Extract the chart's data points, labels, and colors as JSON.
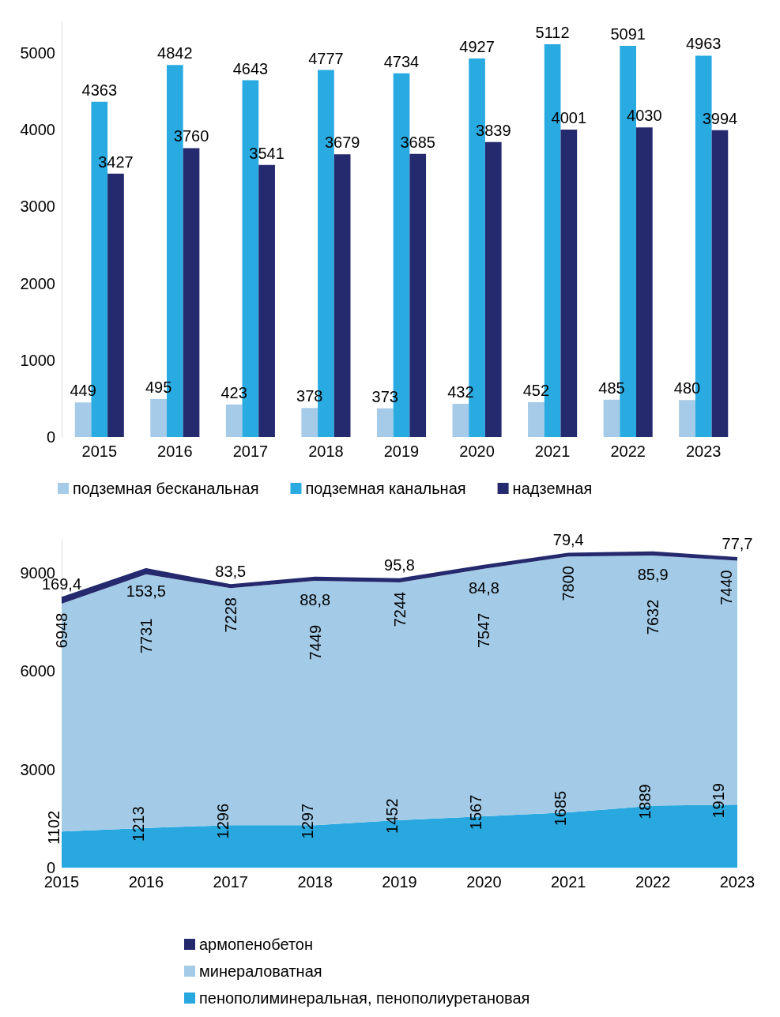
{
  "chart_data": [
    {
      "type": "bar",
      "categories": [
        "2015",
        "2016",
        "2017",
        "2018",
        "2019",
        "2020",
        "2021",
        "2022",
        "2023"
      ],
      "ylim": [
        0,
        5400
      ],
      "yticks": [
        0,
        1000,
        2000,
        3000,
        4000,
        5000
      ],
      "grid": false,
      "legend": "bottom",
      "data_labels": true,
      "series": [
        {
          "name": "подземная бесканальная",
          "color": "#a6cbe8",
          "values": [
            449,
            495,
            423,
            378,
            373,
            432,
            452,
            485,
            480
          ]
        },
        {
          "name": "подземная канальная",
          "color": "#29abe2",
          "values": [
            4363,
            4842,
            4643,
            4777,
            4734,
            4927,
            5112,
            5091,
            4963
          ]
        },
        {
          "name": "надземная",
          "color": "#252a6e",
          "values": [
            3427,
            3760,
            3541,
            3679,
            3685,
            3839,
            4001,
            4030,
            3994
          ]
        }
      ]
    },
    {
      "type": "area",
      "stacked": true,
      "categories": [
        "2015",
        "2016",
        "2017",
        "2018",
        "2019",
        "2020",
        "2021",
        "2022",
        "2023"
      ],
      "ylim": [
        0,
        10000
      ],
      "yticks": [
        0,
        3000,
        6000,
        9000
      ],
      "grid": false,
      "legend": "bottom",
      "series": [
        {
          "name": "пенополиминеральная, пенополиуретановая",
          "color": "#29a8e0",
          "values": [
            1102,
            1213,
            1296,
            1297,
            1452,
            1567,
            1685,
            1889,
            1919
          ],
          "value_labels": [
            "1102",
            "1213",
            "1296",
            "1297",
            "1452",
            "1567",
            "1685",
            "1889",
            "1919"
          ]
        },
        {
          "name": "минераловатная",
          "color": "#a3cbe8",
          "values": [
            6948,
            7731,
            7228,
            7449,
            7244,
            7547,
            7800,
            7632,
            7440
          ],
          "value_labels": [
            "6948",
            "7731",
            "7228",
            "7449",
            "7244",
            "7547",
            "7800",
            "7632",
            "7440"
          ]
        },
        {
          "name": "армопенобетон",
          "color": "#252a6e",
          "values": [
            169.4,
            153.5,
            83.5,
            88.8,
            95.8,
            84.8,
            79.4,
            85.9,
            77.7
          ],
          "value_labels": [
            "169,4",
            "153,5",
            "83,5",
            "88,8",
            "95,8",
            "84,8",
            "79,4",
            "85,9",
            "77,7"
          ]
        }
      ]
    }
  ]
}
